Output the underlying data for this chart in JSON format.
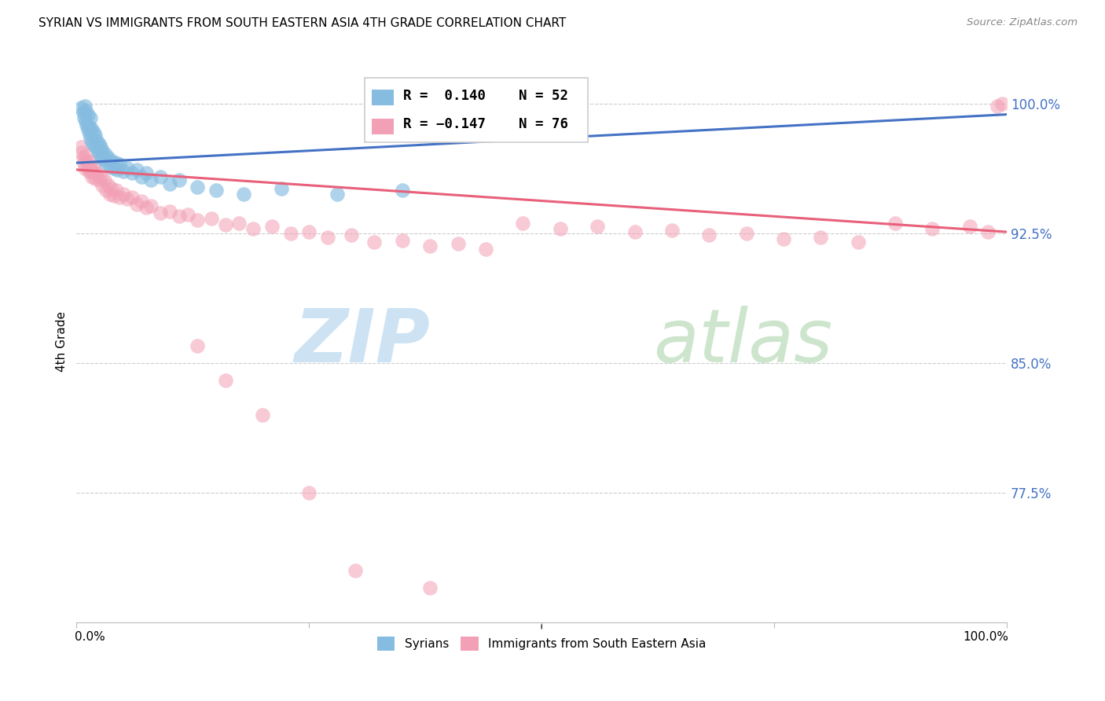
{
  "title": "SYRIAN VS IMMIGRANTS FROM SOUTH EASTERN ASIA 4TH GRADE CORRELATION CHART",
  "source": "Source: ZipAtlas.com",
  "ylabel": "4th Grade",
  "ytick_labels": [
    "100.0%",
    "92.5%",
    "85.0%",
    "77.5%"
  ],
  "ytick_values": [
    1.0,
    0.925,
    0.85,
    0.775
  ],
  "xlim": [
    0.0,
    1.0
  ],
  "ylim": [
    0.7,
    1.025
  ],
  "color_blue": "#85bce0",
  "color_pink": "#f2a0b5",
  "line_color_blue": "#4472c4",
  "line_color_pink": "#e8607a",
  "blue_line_x": [
    0.0,
    1.0
  ],
  "blue_line_y": [
    0.966,
    0.994
  ],
  "pink_line_x": [
    0.0,
    1.0
  ],
  "pink_line_y": [
    0.962,
    0.926
  ],
  "syrians_x": [
    0.005,
    0.007,
    0.008,
    0.009,
    0.01,
    0.01,
    0.011,
    0.012,
    0.012,
    0.013,
    0.014,
    0.015,
    0.015,
    0.016,
    0.017,
    0.018,
    0.019,
    0.02,
    0.021,
    0.022,
    0.023,
    0.024,
    0.025,
    0.026,
    0.027,
    0.028,
    0.03,
    0.031,
    0.032,
    0.034,
    0.036,
    0.038,
    0.04,
    0.042,
    0.044,
    0.046,
    0.05,
    0.055,
    0.06,
    0.065,
    0.07,
    0.075,
    0.08,
    0.09,
    0.1,
    0.11,
    0.13,
    0.15,
    0.18,
    0.22,
    0.28,
    0.35
  ],
  "syrians_y": [
    0.998,
    0.995,
    0.992,
    0.999,
    0.99,
    0.996,
    0.988,
    0.985,
    0.994,
    0.987,
    0.983,
    0.992,
    0.98,
    0.986,
    0.978,
    0.984,
    0.976,
    0.982,
    0.975,
    0.979,
    0.973,
    0.977,
    0.971,
    0.975,
    0.969,
    0.973,
    0.968,
    0.971,
    0.966,
    0.969,
    0.964,
    0.967,
    0.963,
    0.966,
    0.962,
    0.965,
    0.961,
    0.963,
    0.96,
    0.962,
    0.958,
    0.96,
    0.956,
    0.958,
    0.954,
    0.956,
    0.952,
    0.95,
    0.948,
    0.951,
    0.948,
    0.95
  ],
  "sea_x": [
    0.005,
    0.006,
    0.007,
    0.008,
    0.009,
    0.01,
    0.011,
    0.012,
    0.013,
    0.014,
    0.015,
    0.016,
    0.017,
    0.018,
    0.019,
    0.02,
    0.022,
    0.024,
    0.026,
    0.028,
    0.03,
    0.032,
    0.034,
    0.036,
    0.038,
    0.04,
    0.043,
    0.046,
    0.05,
    0.055,
    0.06,
    0.065,
    0.07,
    0.075,
    0.08,
    0.09,
    0.1,
    0.11,
    0.12,
    0.13,
    0.145,
    0.16,
    0.175,
    0.19,
    0.21,
    0.23,
    0.25,
    0.27,
    0.295,
    0.32,
    0.35,
    0.38,
    0.41,
    0.44,
    0.48,
    0.52,
    0.56,
    0.6,
    0.64,
    0.68,
    0.72,
    0.76,
    0.8,
    0.84,
    0.88,
    0.92,
    0.96,
    0.98,
    0.99,
    0.995,
    0.13,
    0.16,
    0.2,
    0.25,
    0.3,
    0.38
  ],
  "sea_y": [
    0.975,
    0.972,
    0.969,
    0.966,
    0.963,
    0.97,
    0.967,
    0.964,
    0.961,
    0.967,
    0.964,
    0.961,
    0.958,
    0.963,
    0.96,
    0.957,
    0.96,
    0.956,
    0.958,
    0.953,
    0.956,
    0.95,
    0.953,
    0.948,
    0.951,
    0.947,
    0.95,
    0.946,
    0.948,
    0.945,
    0.946,
    0.942,
    0.944,
    0.94,
    0.941,
    0.937,
    0.938,
    0.935,
    0.936,
    0.933,
    0.934,
    0.93,
    0.931,
    0.928,
    0.929,
    0.925,
    0.926,
    0.923,
    0.924,
    0.92,
    0.921,
    0.918,
    0.919,
    0.916,
    0.931,
    0.928,
    0.929,
    0.926,
    0.927,
    0.924,
    0.925,
    0.922,
    0.923,
    0.92,
    0.931,
    0.928,
    0.929,
    0.926,
    0.999,
    1.0,
    0.86,
    0.84,
    0.82,
    0.775,
    0.73,
    0.72
  ]
}
